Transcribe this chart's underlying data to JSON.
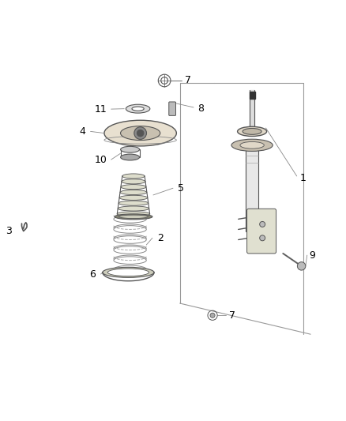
{
  "title": "",
  "background_color": "#ffffff",
  "line_color": "#555555",
  "label_color": "#000000",
  "label_fontsize": 9,
  "fig_width": 4.38,
  "fig_height": 5.33
}
